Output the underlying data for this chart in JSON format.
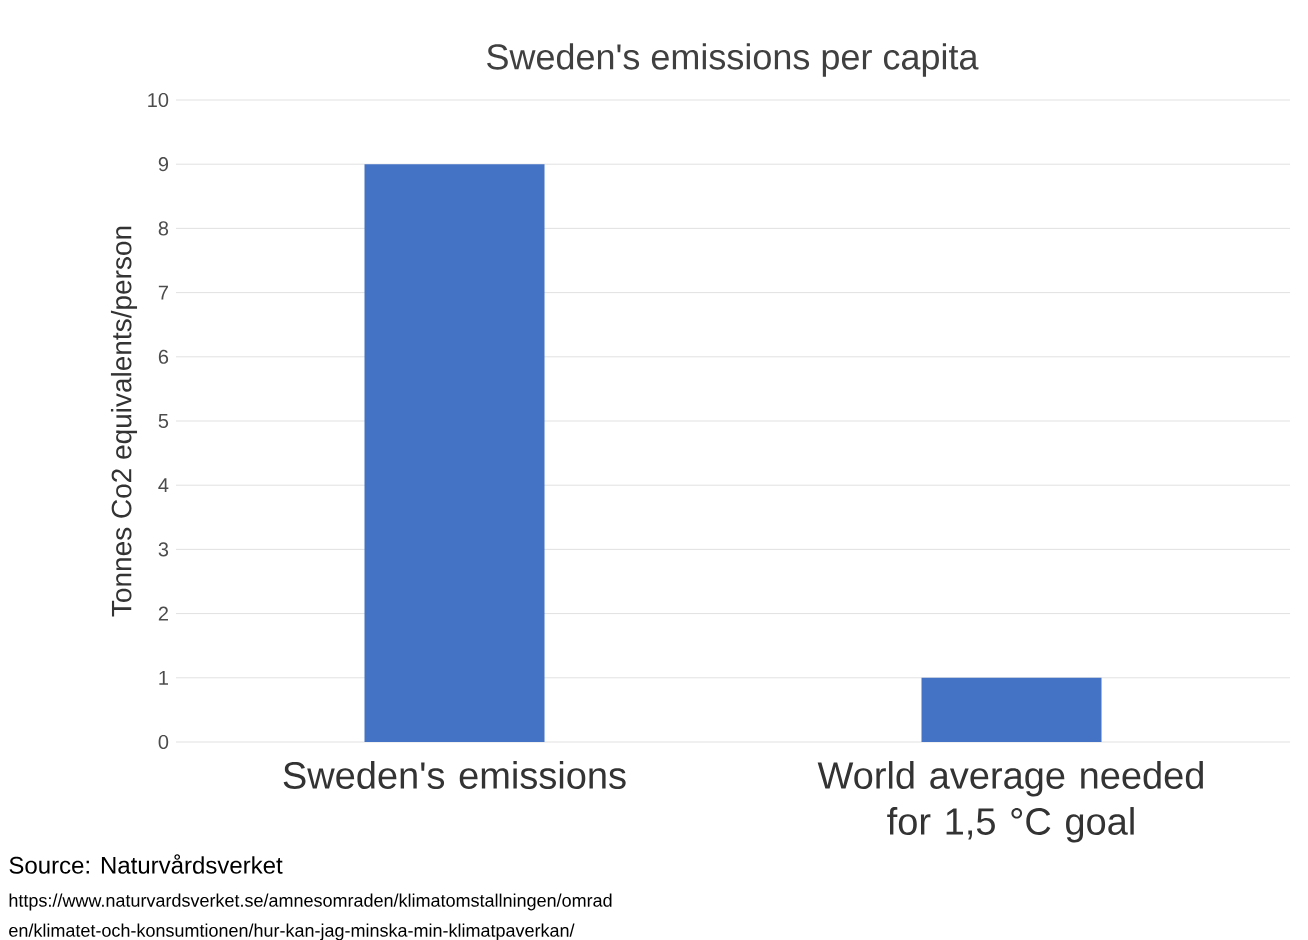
{
  "chart_data": {
    "type": "bar",
    "title": "Sweden's emissions per capita",
    "ylabel": "Tonnes  Co2 equivalents/person",
    "categories": [
      "Sweden's emissions",
      "World average needed for 1,5 °C goal"
    ],
    "values": [
      9,
      1
    ],
    "color": "#4472c4",
    "ylim": [
      0,
      10
    ],
    "yticks": [
      0,
      1,
      2,
      3,
      4,
      5,
      6,
      7,
      8,
      9,
      10
    ],
    "grid": "y",
    "annotations": [
      "Source: Naturvårdsverket",
      "https://www.naturvardsverket.se/amnesomraden/klimatomstallningen/omrad",
      "en/klimatet-och-konsumtionen/hur-kan-jag-minska-min-klimatpaverkan/"
    ]
  }
}
